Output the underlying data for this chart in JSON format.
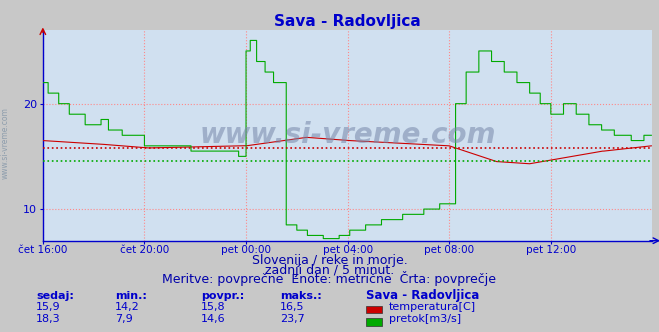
{
  "title": "Sava - Radovljica",
  "title_color": "#0000cc",
  "title_fontsize": 11,
  "bg_color": "#c8c8c8",
  "plot_bg_color": "#d0e0f0",
  "x_ticks_labels": [
    "čet 16:00",
    "čet 20:00",
    "pet 00:00",
    "pet 04:00",
    "pet 08:00",
    "pet 12:00"
  ],
  "x_ticks_positions": [
    0,
    96,
    192,
    288,
    384,
    480
  ],
  "total_points": 576,
  "y_min": 7.0,
  "y_max": 27.0,
  "y_ticks": [
    10,
    20
  ],
  "grid_color": "#ff8888",
  "temp_color": "#cc0000",
  "flow_color": "#00aa00",
  "temp_avg": 15.8,
  "flow_avg": 14.6,
  "watermark": "www.si-vreme.com",
  "subtitle1": "Slovenija / reke in morje.",
  "subtitle2": "zadnji dan / 5 minut.",
  "subtitle3": "Meritve: povprečne  Enote: metrične  Črta: povprečje",
  "subtitle_color": "#0000aa",
  "subtitle_fontsize": 9,
  "legend_header": "Sava - Radovljica",
  "legend_items": [
    {
      "label": "temperatura[C]",
      "color": "#cc0000"
    },
    {
      "label": "pretok[m3/s]",
      "color": "#00aa00"
    }
  ],
  "stats_headers": [
    "sedaj:",
    "min.:",
    "povpr.:",
    "maks.:"
  ],
  "stats_temp": [
    "15,9",
    "14,2",
    "15,8",
    "16,5"
  ],
  "stats_flow": [
    "18,3",
    "7,9",
    "14,6",
    "23,7"
  ],
  "stats_color": "#0000cc",
  "axis_line_color": "#0000cc",
  "spine_color": "#0000cc"
}
